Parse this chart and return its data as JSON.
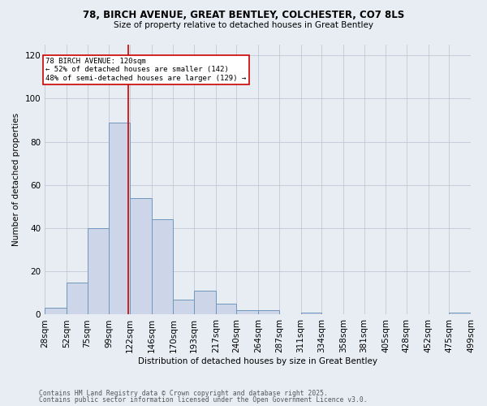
{
  "title_line1": "78, BIRCH AVENUE, GREAT BENTLEY, COLCHESTER, CO7 8LS",
  "title_line2": "Size of property relative to detached houses in Great Bentley",
  "xlabel": "Distribution of detached houses by size in Great Bentley",
  "ylabel": "Number of detached properties",
  "bar_edges": [
    28,
    52,
    75,
    99,
    122,
    146,
    170,
    193,
    217,
    240,
    264,
    287,
    311,
    334,
    358,
    381,
    405,
    428,
    452,
    475,
    499
  ],
  "bar_heights": [
    3,
    15,
    40,
    89,
    54,
    44,
    7,
    11,
    5,
    2,
    2,
    0,
    1,
    0,
    0,
    0,
    0,
    0,
    0,
    1
  ],
  "bar_color": "#ccd6e8",
  "bar_edge_color": "#7098bc",
  "bar_linewidth": 0.7,
  "vline_x": 120,
  "vline_color": "#cc0000",
  "vline_linewidth": 1.2,
  "annotation_text": "78 BIRCH AVENUE: 120sqm\n← 52% of detached houses are smaller (142)\n48% of semi-detached houses are larger (129) →",
  "annotation_xleft": 28,
  "annotation_ytop": 119,
  "annotation_box_color": "#ffffff",
  "annotation_border_color": "#cc0000",
  "ylim": [
    0,
    125
  ],
  "yticks": [
    0,
    20,
    40,
    60,
    80,
    100,
    120
  ],
  "grid_color": "#c0c8d8",
  "background_color": "#e8edf4",
  "axes_background": "#e8edf4",
  "footnote_line1": "Contains HM Land Registry data © Crown copyright and database right 2025.",
  "footnote_line2": "Contains public sector information licensed under the Open Government Licence v3.0.",
  "tick_labels": [
    "28sqm",
    "52sqm",
    "75sqm",
    "99sqm",
    "122sqm",
    "146sqm",
    "170sqm",
    "193sqm",
    "217sqm",
    "240sqm",
    "264sqm",
    "287sqm",
    "311sqm",
    "334sqm",
    "358sqm",
    "381sqm",
    "405sqm",
    "428sqm",
    "452sqm",
    "475sqm",
    "499sqm"
  ]
}
